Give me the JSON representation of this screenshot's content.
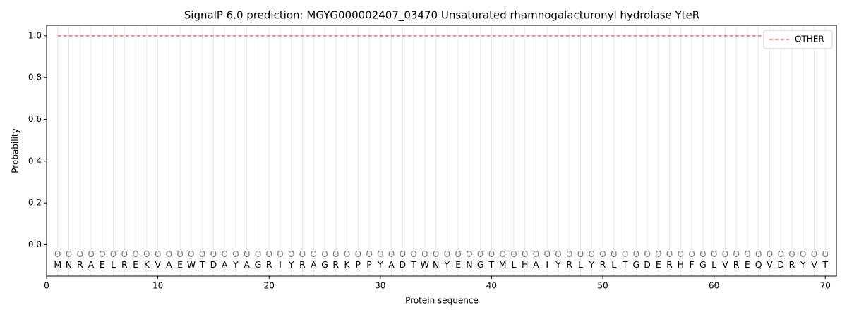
{
  "chart_data": {
    "type": "line",
    "title": "SignalP 6.0 prediction: MGYG000002407_03470 Unsaturated rhamnogalacturonyl hydrolase YteR",
    "xlabel": "Protein sequence",
    "ylabel": "Probability",
    "x": [
      1,
      2,
      3,
      4,
      5,
      6,
      7,
      8,
      9,
      10,
      11,
      12,
      13,
      14,
      15,
      16,
      17,
      18,
      19,
      20,
      21,
      22,
      23,
      24,
      25,
      26,
      27,
      28,
      29,
      30,
      31,
      32,
      33,
      34,
      35,
      36,
      37,
      38,
      39,
      40,
      41,
      42,
      43,
      44,
      45,
      46,
      47,
      48,
      49,
      50,
      51,
      52,
      53,
      54,
      55,
      56,
      57,
      58,
      59,
      60,
      61,
      62,
      63,
      64,
      65,
      66,
      67,
      68,
      69,
      70
    ],
    "residues": [
      "M",
      "N",
      "R",
      "A",
      "E",
      "L",
      "R",
      "E",
      "K",
      "V",
      "A",
      "E",
      "W",
      "T",
      "D",
      "A",
      "Y",
      "A",
      "G",
      "R",
      "I",
      "Y",
      "R",
      "A",
      "G",
      "R",
      "K",
      "P",
      "P",
      "Y",
      "A",
      "D",
      "T",
      "W",
      "N",
      "Y",
      "E",
      "N",
      "G",
      "T",
      "M",
      "L",
      "H",
      "A",
      "I",
      "Y",
      "R",
      "L",
      "Y",
      "R",
      "L",
      "T",
      "G",
      "D",
      "E",
      "R",
      "H",
      "F",
      "G",
      "L",
      "V",
      "R",
      "E",
      "Q",
      "V",
      "D",
      "R",
      "Y",
      "V",
      "T"
    ],
    "residue_labels": [
      "O",
      "O",
      "O",
      "O",
      "O",
      "O",
      "O",
      "O",
      "O",
      "O",
      "O",
      "O",
      "O",
      "O",
      "O",
      "O",
      "O",
      "O",
      "O",
      "O",
      "O",
      "O",
      "O",
      "O",
      "O",
      "O",
      "O",
      "O",
      "O",
      "O",
      "O",
      "O",
      "O",
      "O",
      "O",
      "O",
      "O",
      "O",
      "O",
      "O",
      "O",
      "O",
      "O",
      "O",
      "O",
      "O",
      "O",
      "O",
      "O",
      "O",
      "O",
      "O",
      "O",
      "O",
      "O",
      "O",
      "O",
      "O",
      "O",
      "O",
      "O",
      "O",
      "O",
      "O",
      "O",
      "O",
      "O",
      "O",
      "O",
      "O"
    ],
    "series": [
      {
        "name": "OTHER",
        "color": "#f07070",
        "dashed": true,
        "values": [
          1,
          1,
          1,
          1,
          1,
          1,
          1,
          1,
          1,
          1,
          1,
          1,
          1,
          1,
          1,
          1,
          1,
          1,
          1,
          1,
          1,
          1,
          1,
          1,
          1,
          1,
          1,
          1,
          1,
          1,
          1,
          1,
          1,
          1,
          1,
          1,
          1,
          1,
          1,
          1,
          1,
          1,
          1,
          1,
          1,
          1,
          1,
          1,
          1,
          1,
          1,
          1,
          1,
          1,
          1,
          1,
          1,
          1,
          1,
          1,
          1,
          1,
          1,
          1,
          1,
          1,
          1,
          1,
          1,
          1
        ]
      }
    ],
    "xlim": [
      0,
      71
    ],
    "ylim": [
      -0.15,
      1.05
    ],
    "xticks": [
      0,
      10,
      20,
      30,
      40,
      50,
      60,
      70
    ],
    "yticks": [
      {
        "value": 0,
        "label": "0.0"
      },
      {
        "value": 0.2,
        "label": "0.2"
      },
      {
        "value": 0.4,
        "label": "0.4"
      },
      {
        "value": 0.6,
        "label": "0.6"
      },
      {
        "value": 0.8,
        "label": "0.8"
      },
      {
        "value": 1,
        "label": "1.0"
      }
    ],
    "legend": "upper right"
  }
}
